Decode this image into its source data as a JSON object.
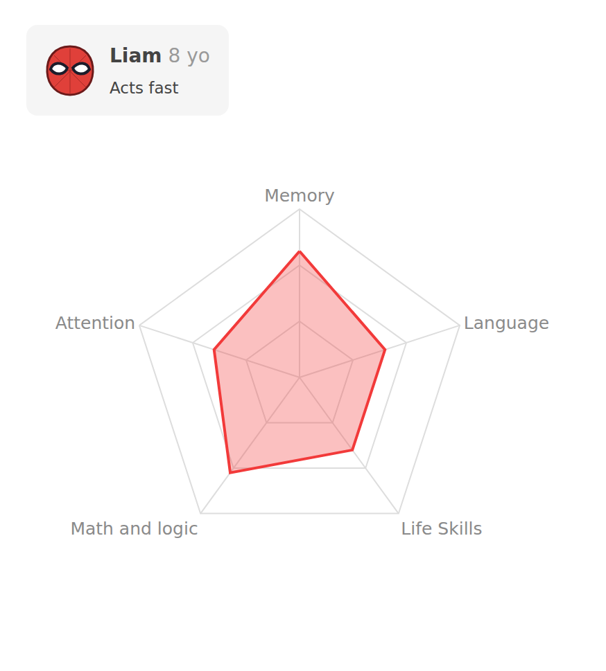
{
  "header": {
    "name": "Liam",
    "age": "8 yo",
    "status": "Acts fast"
  },
  "chart_data": {
    "type": "radar",
    "categories": [
      "Memory",
      "Language",
      "Life Skills",
      "Math and logic",
      "Attention"
    ],
    "values": [
      2.25,
      1.6,
      1.6,
      2.1,
      1.6
    ],
    "color": "#f23a3a",
    "rlim": [
      0,
      3
    ],
    "rticks": [
      1,
      2,
      3
    ],
    "grid": true,
    "tick_labels": false
  }
}
